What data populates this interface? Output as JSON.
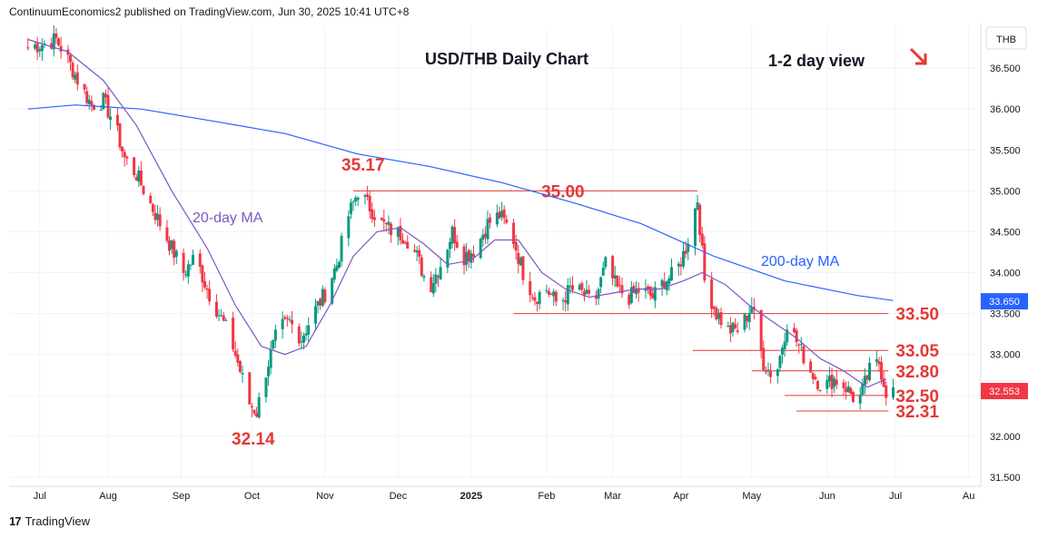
{
  "header": {
    "publisher": "ContinuumEconomics2 published on TradingView.com, Jun 30, 2025 10:41 UTC+8"
  },
  "footer": {
    "logo": "17",
    "brand": "TradingView"
  },
  "chart_data": {
    "type": "candlestick",
    "title": "USD/THB Daily Chart",
    "subtitle": "1-2 day view",
    "currency": "THB",
    "last_price": "32.553",
    "ma200_last": "33.650",
    "ylim": [
      31.5,
      37.0
    ],
    "y_ticks": [
      "31.500",
      "32.000",
      "32.500",
      "33.000",
      "33.500",
      "34.000",
      "34.500",
      "35.000",
      "35.500",
      "36.000",
      "36.500"
    ],
    "x_ticks": [
      "Jul",
      "Aug",
      "Sep",
      "Oct",
      "Nov",
      "Dec",
      "2025",
      "Feb",
      "Mar",
      "Apr",
      "May",
      "Jun",
      "Jul",
      "Au"
    ],
    "annotations": {
      "ma20_label": "20-day MA",
      "ma200_label": "200-day MA",
      "high_label": "35.17",
      "low_label": "32.14"
    },
    "levels": [
      {
        "label": "35.00",
        "value": 35.0
      },
      {
        "label": "33.50",
        "value": 33.5
      },
      {
        "label": "33.05",
        "value": 33.05
      },
      {
        "label": "32.80",
        "value": 32.8
      },
      {
        "label": "32.50",
        "value": 32.5
      },
      {
        "label": "32.31",
        "value": 32.31
      }
    ],
    "close_path": [
      [
        "2024-06-28",
        36.75
      ],
      [
        "2024-07-05",
        36.8
      ],
      [
        "2024-07-10",
        36.85
      ],
      [
        "2024-07-15",
        36.6
      ],
      [
        "2024-07-20",
        36.3
      ],
      [
        "2024-07-25",
        36.05
      ],
      [
        "2024-07-30",
        36.1
      ],
      [
        "2024-08-04",
        35.8
      ],
      [
        "2024-08-08",
        35.4
      ],
      [
        "2024-08-13",
        35.2
      ],
      [
        "2024-08-18",
        34.9
      ],
      [
        "2024-08-23",
        34.6
      ],
      [
        "2024-08-28",
        34.3
      ],
      [
        "2024-09-02",
        34.0
      ],
      [
        "2024-09-07",
        34.2
      ],
      [
        "2024-09-12",
        33.8
      ],
      [
        "2024-09-17",
        33.5
      ],
      [
        "2024-09-22",
        33.2
      ],
      [
        "2024-09-26",
        32.8
      ],
      [
        "2024-09-30",
        32.4
      ],
      [
        "2024-10-03",
        32.3
      ],
      [
        "2024-10-07",
        32.8
      ],
      [
        "2024-10-12",
        33.3
      ],
      [
        "2024-10-17",
        33.4
      ],
      [
        "2024-10-22",
        33.2
      ],
      [
        "2024-10-27",
        33.5
      ],
      [
        "2024-11-01",
        33.75
      ],
      [
        "2024-11-06",
        34.1
      ],
      [
        "2024-11-11",
        34.7
      ],
      [
        "2024-11-15",
        35.0
      ],
      [
        "2024-11-20",
        34.8
      ],
      [
        "2024-11-25",
        34.6
      ],
      [
        "2024-11-30",
        34.5
      ],
      [
        "2024-12-05",
        34.45
      ],
      [
        "2024-12-10",
        34.2
      ],
      [
        "2024-12-15",
        33.8
      ],
      [
        "2024-12-20",
        34.1
      ],
      [
        "2024-12-25",
        34.5
      ],
      [
        "2024-12-30",
        34.2
      ],
      [
        "2025-01-04",
        34.3
      ],
      [
        "2025-01-09",
        34.6
      ],
      [
        "2025-01-14",
        34.7
      ],
      [
        "2025-01-19",
        34.5
      ],
      [
        "2025-01-24",
        34.0
      ],
      [
        "2025-01-29",
        33.7
      ],
      [
        "2025-02-03",
        33.8
      ],
      [
        "2025-02-08",
        33.6
      ],
      [
        "2025-02-13",
        33.8
      ],
      [
        "2025-02-18",
        33.75
      ],
      [
        "2025-02-23",
        33.6
      ],
      [
        "2025-02-28",
        34.1
      ],
      [
        "2025-03-05",
        33.8
      ],
      [
        "2025-03-10",
        33.7
      ],
      [
        "2025-03-15",
        33.8
      ],
      [
        "2025-03-20",
        33.7
      ],
      [
        "2025-03-25",
        33.9
      ],
      [
        "2025-03-30",
        34.0
      ],
      [
        "2025-04-03",
        34.3
      ],
      [
        "2025-04-08",
        34.9
      ],
      [
        "2025-04-11",
        33.9
      ],
      [
        "2025-04-16",
        33.5
      ],
      [
        "2025-04-21",
        33.3
      ],
      [
        "2025-04-26",
        33.3
      ],
      [
        "2025-05-01",
        33.6
      ],
      [
        "2025-05-06",
        32.9
      ],
      [
        "2025-05-11",
        32.7
      ],
      [
        "2025-05-16",
        33.4
      ],
      [
        "2025-05-21",
        33.1
      ],
      [
        "2025-05-26",
        32.8
      ],
      [
        "2025-05-31",
        32.6
      ],
      [
        "2025-06-05",
        32.7
      ],
      [
        "2025-06-10",
        32.6
      ],
      [
        "2025-06-15",
        32.4
      ],
      [
        "2025-06-20",
        32.8
      ],
      [
        "2025-06-24",
        32.9
      ],
      [
        "2025-06-27",
        32.55
      ],
      [
        "2025-06-30",
        32.55
      ]
    ],
    "ma20_path": [
      [
        "2024-06-28",
        36.85
      ],
      [
        "2024-07-15",
        36.7
      ],
      [
        "2024-07-30",
        36.35
      ],
      [
        "2024-08-13",
        35.8
      ],
      [
        "2024-08-28",
        35.0
      ],
      [
        "2024-09-12",
        34.3
      ],
      [
        "2024-09-24",
        33.6
      ],
      [
        "2024-10-05",
        33.1
      ],
      [
        "2024-10-15",
        33.0
      ],
      [
        "2024-10-24",
        33.1
      ],
      [
        "2024-11-03",
        33.6
      ],
      [
        "2024-11-13",
        34.2
      ],
      [
        "2024-11-23",
        34.5
      ],
      [
        "2024-12-03",
        34.55
      ],
      [
        "2024-12-13",
        34.35
      ],
      [
        "2024-12-23",
        34.1
      ],
      [
        "2025-01-02",
        34.15
      ],
      [
        "2025-01-12",
        34.4
      ],
      [
        "2025-01-22",
        34.4
      ],
      [
        "2025-02-01",
        34.0
      ],
      [
        "2025-02-11",
        33.8
      ],
      [
        "2025-02-21",
        33.7
      ],
      [
        "2025-03-03",
        33.75
      ],
      [
        "2025-03-13",
        33.8
      ],
      [
        "2025-03-23",
        33.8
      ],
      [
        "2025-04-02",
        33.9
      ],
      [
        "2025-04-10",
        34.0
      ],
      [
        "2025-04-20",
        33.85
      ],
      [
        "2025-04-30",
        33.6
      ],
      [
        "2025-05-10",
        33.4
      ],
      [
        "2025-05-20",
        33.2
      ],
      [
        "2025-05-30",
        32.95
      ],
      [
        "2025-06-09",
        32.8
      ],
      [
        "2025-06-19",
        32.6
      ],
      [
        "2025-06-27",
        32.7
      ]
    ],
    "ma200_path": [
      [
        "2024-06-28",
        36.0
      ],
      [
        "2024-07-18",
        36.05
      ],
      [
        "2024-08-15",
        36.0
      ],
      [
        "2024-09-15",
        35.85
      ],
      [
        "2024-10-15",
        35.7
      ],
      [
        "2024-11-15",
        35.45
      ],
      [
        "2024-12-15",
        35.3
      ],
      [
        "2025-01-15",
        35.1
      ],
      [
        "2025-02-15",
        34.85
      ],
      [
        "2025-03-15",
        34.6
      ],
      [
        "2025-04-15",
        34.2
      ],
      [
        "2025-05-15",
        33.9
      ],
      [
        "2025-06-15",
        33.72
      ],
      [
        "2025-06-30",
        33.66
      ]
    ]
  },
  "colors": {
    "up": "#089981",
    "down": "#f23645",
    "ma20": "#7e57c2",
    "ma200": "#2962ff",
    "level": "#e53935",
    "text": "#131722",
    "grid": "#f0f3fa",
    "axis": "#dadde5"
  }
}
